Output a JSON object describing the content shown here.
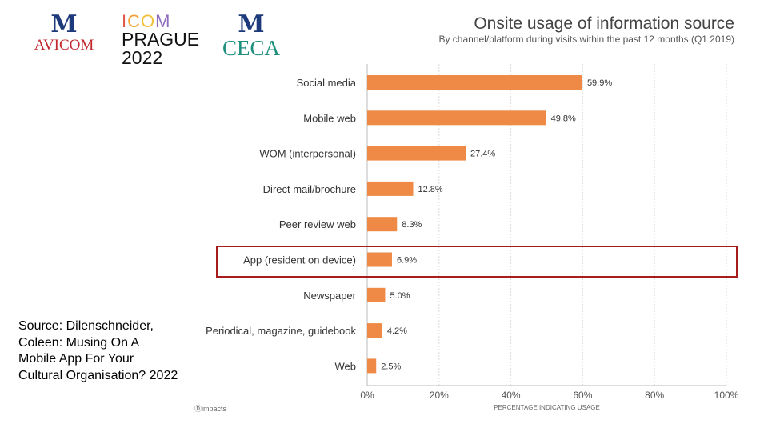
{
  "logos": {
    "avicom": {
      "mark": "M",
      "name": "AVICOM"
    },
    "icom": {
      "letters": [
        "I",
        "C",
        "O",
        "M"
      ],
      "colors": [
        "#e0574a",
        "#f3a23a",
        "#f0c23a",
        "#8e6bbf"
      ],
      "line2": "PRAGUE",
      "line3": "2022"
    },
    "ceca": {
      "mark": "M",
      "name": "CECA"
    }
  },
  "source_text": "Source: Dilenschneider, Coleen: Musing On A Mobile App For Your Cultural Organisation? 2022",
  "footer_brand": "impacts",
  "highlight_category": "App (resident on device)",
  "chart_data": {
    "type": "bar",
    "orientation": "horizontal",
    "title": "Onsite usage of information source",
    "subtitle": "By channel/platform during visits within the past 12 months (Q1 2019)",
    "xlabel": "PERCENTAGE INDICATING USAGE",
    "ylabel": "",
    "xlim": [
      0,
      100
    ],
    "xticks": [
      "0%",
      "20%",
      "40%",
      "60%",
      "80%",
      "100%"
    ],
    "grid": true,
    "bar_color": "#ee8a45",
    "categories": [
      "Social media",
      "Mobile web",
      "WOM (interpersonal)",
      "Direct mail/brochure",
      "Peer review web",
      "App (resident on device)",
      "Newspaper",
      "Periodical, magazine, guidebook",
      "Web"
    ],
    "values": [
      59.9,
      49.8,
      27.4,
      12.8,
      8.3,
      6.9,
      5.0,
      4.2,
      2.5
    ],
    "labels": [
      "59.9%",
      "49.8%",
      "27.4%",
      "12.8%",
      "8.3%",
      "6.9%",
      "5.0%",
      "4.2%",
      "2.5%"
    ]
  }
}
